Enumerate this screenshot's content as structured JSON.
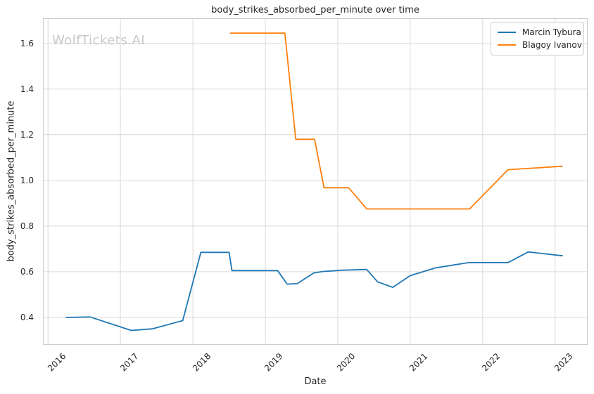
{
  "watermark": "WolfTickets.AI",
  "colors": {
    "background": "#ffffff",
    "grid": "#d9d9d9",
    "spine": "#cccccc",
    "text": "#262626",
    "watermark": "#c9c9c9",
    "series_blue": "#1f77b4",
    "series_orange": "#ff7f0e"
  },
  "chart_data": {
    "type": "line",
    "title": "body_strikes_absorbed_per_minute over time",
    "xlabel": "Date",
    "ylabel": "body_strikes_absorbed_per_minute",
    "xlim": [
      2015.93,
      2023.45
    ],
    "ylim": [
      0.28,
      1.71
    ],
    "xticks": [
      2016,
      2017,
      2018,
      2019,
      2020,
      2021,
      2022,
      2023
    ],
    "yticks": [
      0.4,
      0.6,
      0.8,
      1.0,
      1.2,
      1.4,
      1.6
    ],
    "grid": true,
    "legend_position": "upper right",
    "series": [
      {
        "name": "Marcin Tybura",
        "color": "#1f77b4",
        "x": [
          2016.25,
          2016.58,
          2017.15,
          2017.44,
          2017.86,
          2018.11,
          2018.5,
          2018.54,
          2019.17,
          2019.3,
          2019.44,
          2019.67,
          2019.79,
          2020.07,
          2020.4,
          2020.55,
          2020.76,
          2021.0,
          2021.35,
          2021.81,
          2022.35,
          2022.63,
          2023.1
        ],
        "y": [
          0.4,
          0.402,
          0.343,
          0.35,
          0.386,
          0.685,
          0.685,
          0.605,
          0.605,
          0.546,
          0.548,
          0.595,
          0.601,
          0.607,
          0.61,
          0.556,
          0.532,
          0.583,
          0.617,
          0.64,
          0.64,
          0.687,
          0.67
        ]
      },
      {
        "name": "Blagoy Ivanov",
        "color": "#ff7f0e",
        "x": [
          2018.52,
          2019.27,
          2019.42,
          2019.68,
          2019.81,
          2020.15,
          2020.4,
          2021.82,
          2022.35,
          2023.1
        ],
        "y": [
          1.645,
          1.645,
          1.18,
          1.18,
          0.968,
          0.968,
          0.875,
          0.875,
          1.047,
          1.062
        ]
      }
    ]
  }
}
